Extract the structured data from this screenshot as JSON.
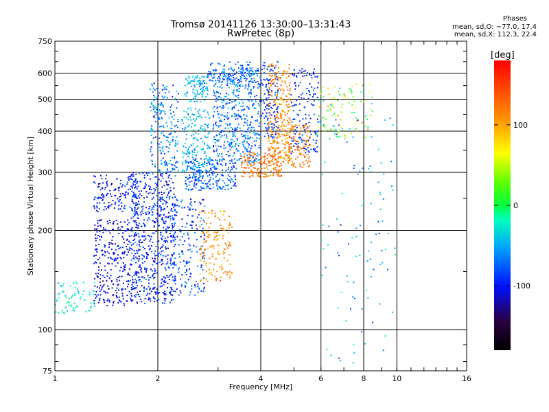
{
  "chart_data": {
    "type": "scatter",
    "title": "Tromsø 20141126 13:30:00–13:31:43",
    "subtitle": "RwPretec (8p)",
    "xlabel": "Frequency [MHz]",
    "ylabel": "Stationary phase Virtual Height [km]",
    "x_scale": "log",
    "y_scale": "log",
    "xlim": [
      1,
      16
    ],
    "ylim": [
      75,
      750
    ],
    "x_ticks": [
      1,
      2,
      4,
      6,
      8,
      10,
      16
    ],
    "x_tick_labels": [
      "1",
      "2",
      "4",
      "6",
      "8",
      "10",
      "16"
    ],
    "y_ticks": [
      75,
      100,
      200,
      300,
      400,
      500,
      600,
      750
    ],
    "y_tick_labels": [
      "75",
      "100",
      "200",
      "300",
      "400",
      "500",
      "600",
      "750"
    ],
    "grid": true,
    "colorbar": {
      "label": "[deg]",
      "range": [
        -180,
        180
      ],
      "ticks": [
        100,
        0,
        -100
      ],
      "tick_labels": [
        "100",
        "0",
        "-100"
      ]
    },
    "stats_header": "Phases",
    "stats_lines": [
      "mean, sd,O: −77.0, 17.4",
      "mean, sd,X: 112.3, 22.4"
    ],
    "clusters": [
      {
        "fmin": 1.0,
        "fmax": 1.32,
        "hmin": 112,
        "hmax": 140,
        "phase": -30,
        "spread": 25,
        "n": 70
      },
      {
        "fmin": 1.3,
        "fmax": 1.65,
        "hmin": 118,
        "hmax": 215,
        "phase": -115,
        "spread": 20,
        "n": 260
      },
      {
        "fmin": 1.3,
        "fmax": 1.75,
        "hmin": 228,
        "hmax": 295,
        "phase": -110,
        "spread": 20,
        "n": 150
      },
      {
        "fmin": 1.65,
        "fmax": 2.25,
        "hmin": 120,
        "hmax": 300,
        "phase": -105,
        "spread": 25,
        "n": 650
      },
      {
        "fmin": 1.9,
        "fmax": 2.3,
        "hmin": 300,
        "hmax": 560,
        "phase": -80,
        "spread": 30,
        "n": 210
      },
      {
        "fmin": 2.2,
        "fmax": 2.75,
        "hmin": 125,
        "hmax": 250,
        "phase": -95,
        "spread": 25,
        "n": 180
      },
      {
        "fmin": 2.35,
        "fmax": 2.85,
        "hmin": 300,
        "hmax": 470,
        "phase": -55,
        "spread": 25,
        "n": 180
      },
      {
        "fmin": 2.4,
        "fmax": 2.8,
        "hmin": 490,
        "hmax": 590,
        "phase": -60,
        "spread": 25,
        "n": 90
      },
      {
        "fmin": 2.8,
        "fmax": 3.8,
        "hmin": 560,
        "hmax": 650,
        "phase": -90,
        "spread": 20,
        "n": 90
      },
      {
        "fmin": 2.9,
        "fmax": 4.0,
        "hmin": 320,
        "hmax": 620,
        "phase": -80,
        "spread": 30,
        "n": 520
      },
      {
        "fmin": 2.4,
        "fmax": 3.4,
        "hmin": 265,
        "hmax": 330,
        "phase": -90,
        "spread": 25,
        "n": 220
      },
      {
        "fmin": 2.65,
        "fmax": 3.3,
        "hmin": 140,
        "hmax": 230,
        "phase": 110,
        "spread": 25,
        "n": 150
      },
      {
        "fmin": 3.5,
        "fmax": 4.6,
        "hmin": 290,
        "hmax": 345,
        "phase": 125,
        "spread": 20,
        "n": 160
      },
      {
        "fmin": 4.2,
        "fmax": 4.9,
        "hmin": 320,
        "hmax": 640,
        "phase": 115,
        "spread": 25,
        "n": 300
      },
      {
        "fmin": 4.0,
        "fmax": 4.5,
        "hmin": 380,
        "hmax": 650,
        "phase": -95,
        "spread": 20,
        "n": 120
      },
      {
        "fmin": 4.9,
        "fmax": 5.9,
        "hmin": 340,
        "hmax": 620,
        "phase": -100,
        "spread": 20,
        "n": 150
      },
      {
        "fmin": 4.8,
        "fmax": 5.6,
        "hmin": 310,
        "hmax": 420,
        "phase": 120,
        "spread": 20,
        "n": 110
      },
      {
        "fmin": 5.8,
        "fmax": 8.5,
        "hmin": 380,
        "hmax": 560,
        "phase": 40,
        "spread": 70,
        "n": 110
      },
      {
        "fmin": 6.0,
        "fmax": 10.0,
        "hmin": 78,
        "hmax": 450,
        "phase": -60,
        "spread": 45,
        "n": 100
      }
    ]
  }
}
